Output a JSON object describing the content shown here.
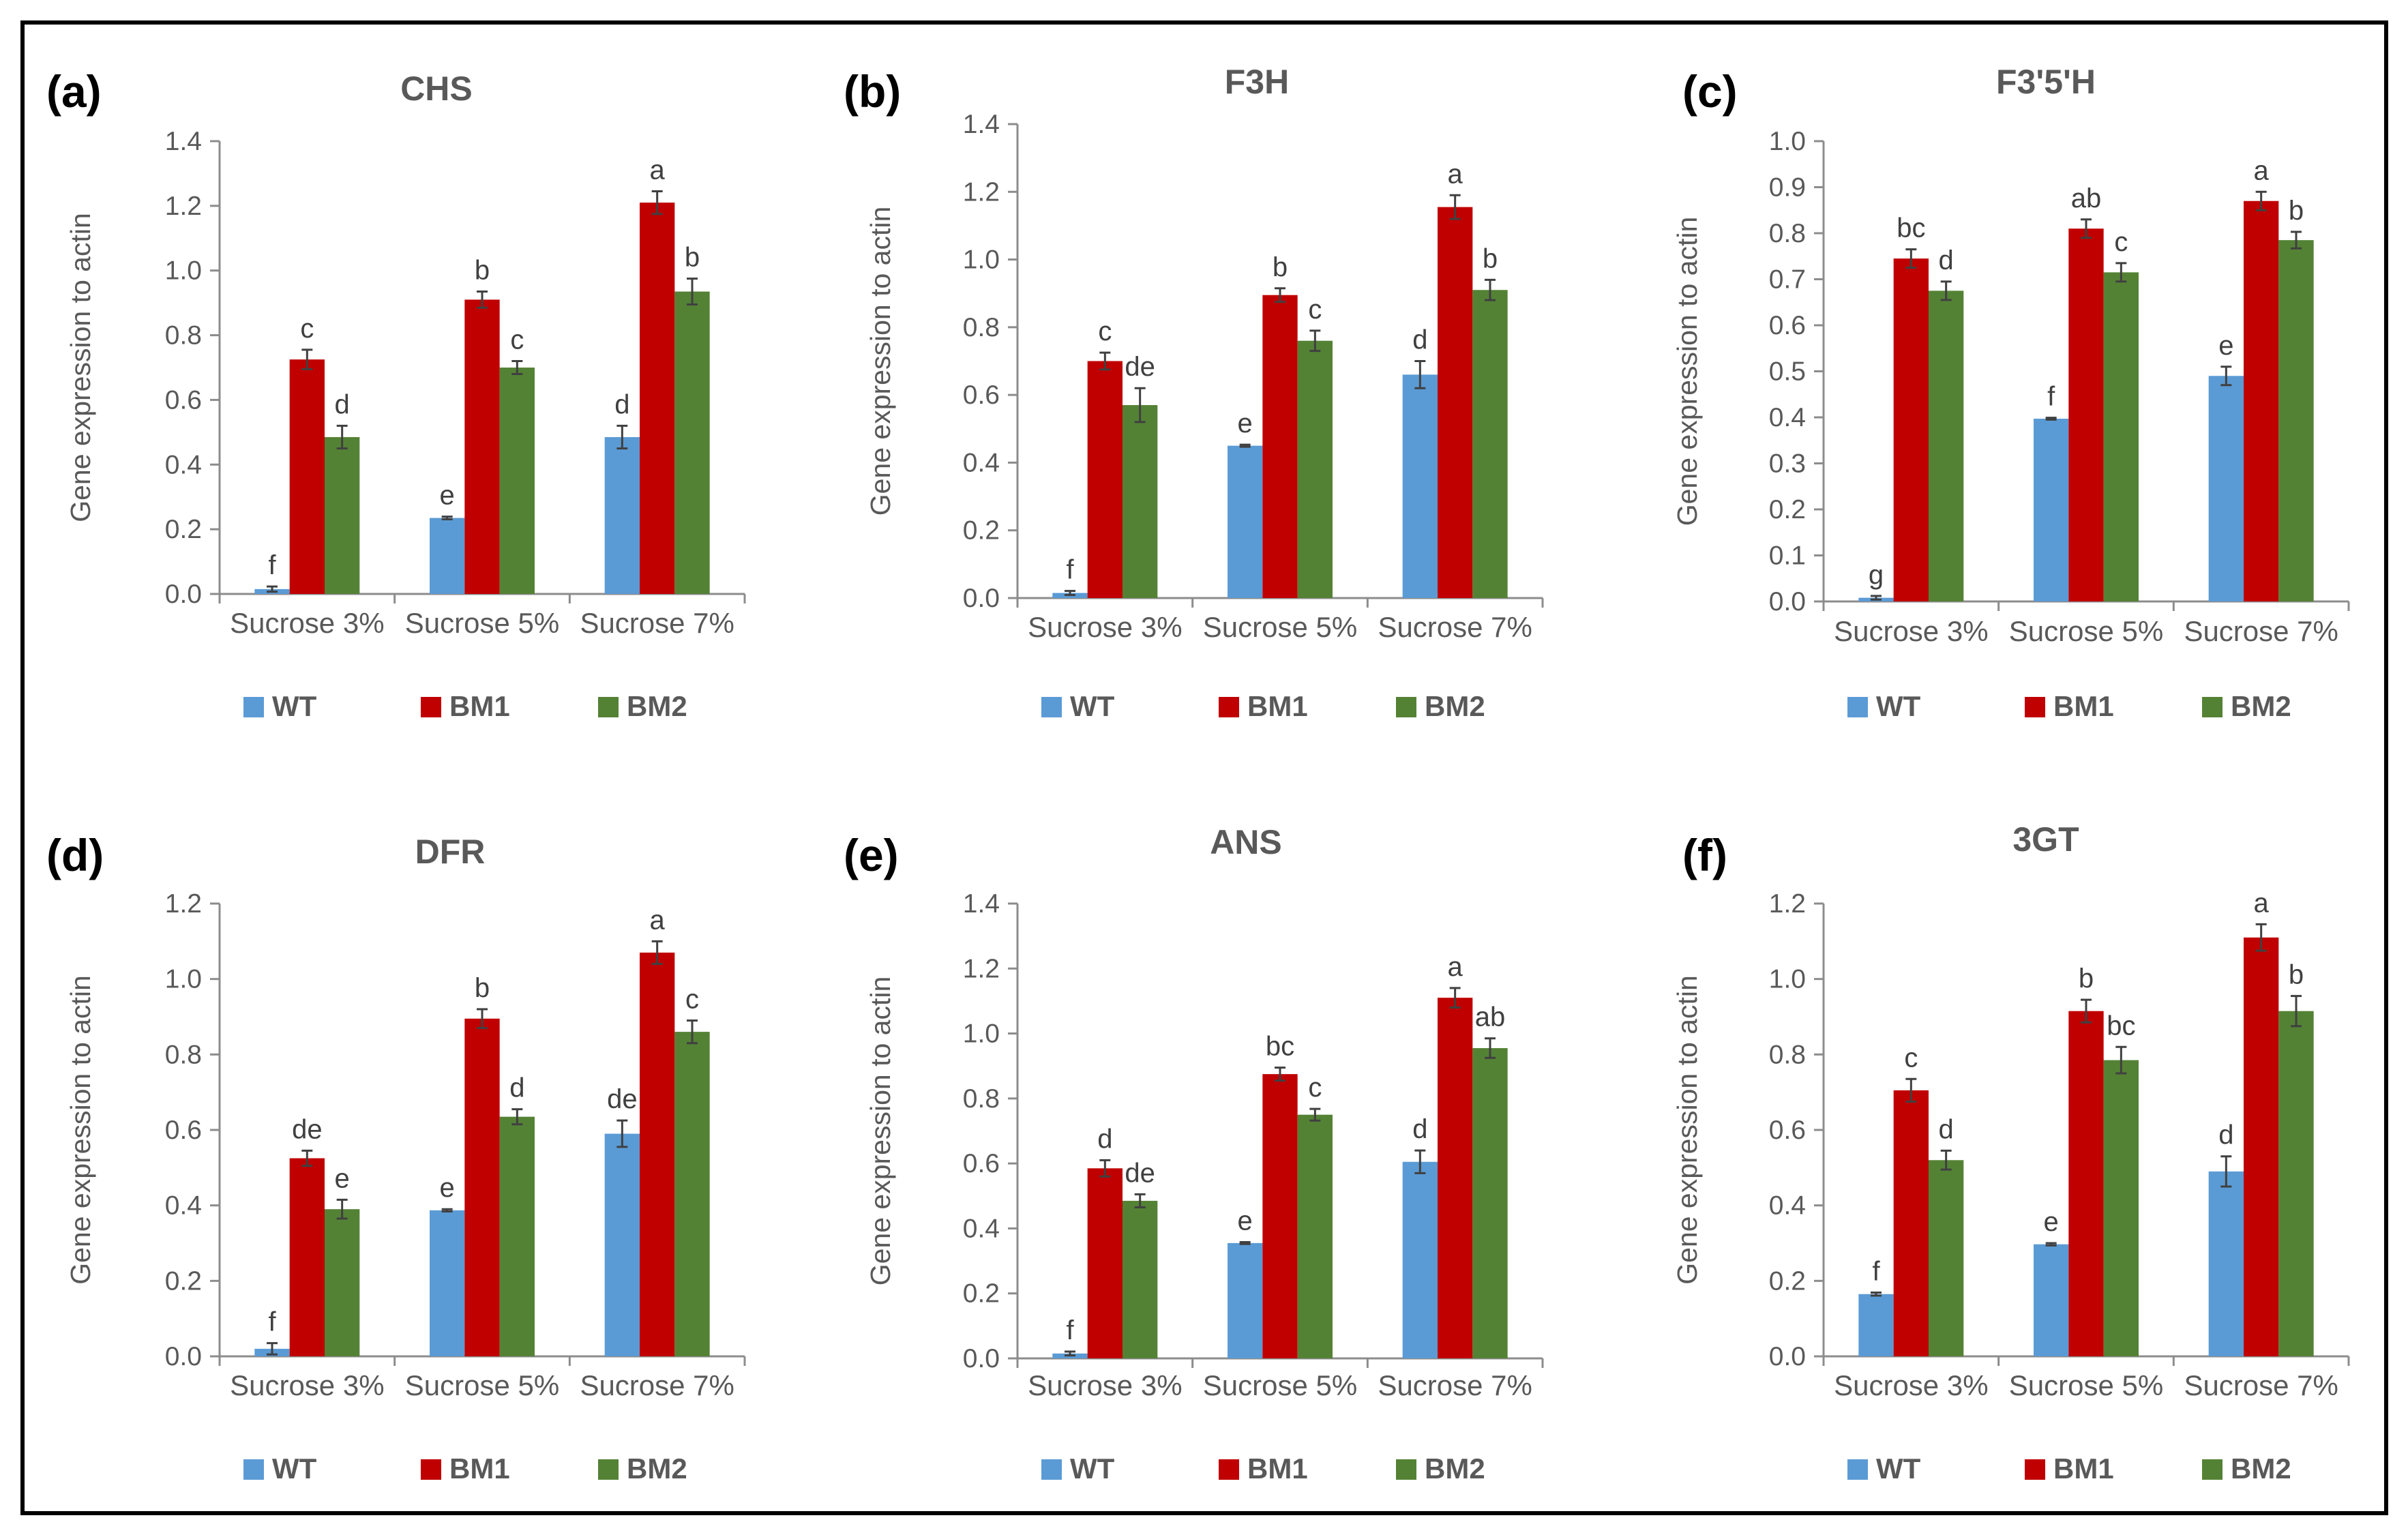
{
  "chart_data": [
    {
      "type": "bar",
      "panel": "(a)",
      "title": "CHS",
      "xlabel": "",
      "ylabel": "Gene expression to actin",
      "categories": [
        "Sucrose 3%",
        "Sucrose 5%",
        "Sucrose 7%"
      ],
      "ylim": [
        0,
        1.4
      ],
      "ytick_step": 0.2,
      "ytick_decimals": 1,
      "legend": "bottom",
      "series": [
        {
          "name": "WT",
          "color": "#5b9bd5",
          "values": [
            0.015,
            0.235,
            0.485
          ],
          "errors": [
            0.008,
            0.004,
            0.035
          ],
          "labels": [
            "f",
            "e",
            "d"
          ]
        },
        {
          "name": "BM1",
          "color": "#c00000",
          "values": [
            0.725,
            0.91,
            1.21
          ],
          "errors": [
            0.03,
            0.025,
            0.035
          ],
          "labels": [
            "c",
            "b",
            "a"
          ]
        },
        {
          "name": "BM2",
          "color": "#548235",
          "values": [
            0.485,
            0.7,
            0.935
          ],
          "errors": [
            0.035,
            0.02,
            0.04
          ],
          "labels": [
            "d",
            "c",
            "b"
          ]
        }
      ]
    },
    {
      "type": "bar",
      "panel": "(b)",
      "title": "F3H",
      "xlabel": "",
      "ylabel": "Gene expression to actin",
      "categories": [
        "Sucrose 3%",
        "Sucrose 5%",
        "Sucrose 7%"
      ],
      "ylim": [
        0,
        1.4
      ],
      "ytick_step": 0.2,
      "ytick_decimals": 1,
      "legend": "bottom",
      "series": [
        {
          "name": "WT",
          "color": "#5b9bd5",
          "values": [
            0.015,
            0.45,
            0.66
          ],
          "errors": [
            0.006,
            0.003,
            0.04
          ],
          "labels": [
            "f",
            "e",
            "d"
          ]
        },
        {
          "name": "BM1",
          "color": "#c00000",
          "values": [
            0.7,
            0.895,
            1.155
          ],
          "errors": [
            0.025,
            0.02,
            0.035
          ],
          "labels": [
            "c",
            "b",
            "a"
          ]
        },
        {
          "name": "BM2",
          "color": "#548235",
          "values": [
            0.57,
            0.76,
            0.91
          ],
          "errors": [
            0.05,
            0.03,
            0.03
          ],
          "labels": [
            "de",
            "c",
            "b"
          ]
        }
      ]
    },
    {
      "type": "bar",
      "panel": "(c)",
      "title": "F3'5'H",
      "xlabel": "",
      "ylabel": "Gene expression to actin",
      "categories": [
        "Sucrose 3%",
        "Sucrose 5%",
        "Sucrose 7%"
      ],
      "ylim": [
        0,
        1.0
      ],
      "ytick_step": 0.1,
      "ytick_decimals": 1,
      "legend": "bottom",
      "series": [
        {
          "name": "WT",
          "color": "#5b9bd5",
          "values": [
            0.008,
            0.397,
            0.49
          ],
          "errors": [
            0.004,
            0.002,
            0.02
          ],
          "labels": [
            "g",
            "f",
            "e"
          ]
        },
        {
          "name": "BM1",
          "color": "#c00000",
          "values": [
            0.745,
            0.81,
            0.87
          ],
          "errors": [
            0.02,
            0.02,
            0.02
          ],
          "labels": [
            "bc",
            "ab",
            "a"
          ]
        },
        {
          "name": "BM2",
          "color": "#548235",
          "values": [
            0.675,
            0.715,
            0.785
          ],
          "errors": [
            0.02,
            0.02,
            0.018
          ],
          "labels": [
            "d",
            "c",
            "b"
          ]
        }
      ]
    },
    {
      "type": "bar",
      "panel": "(d)",
      "title": "DFR",
      "xlabel": "",
      "ylabel": "Gene expression to actin",
      "categories": [
        "Sucrose 3%",
        "Sucrose 5%",
        "Sucrose 7%"
      ],
      "ylim": [
        0,
        1.2
      ],
      "ytick_step": 0.2,
      "ytick_decimals": 1,
      "legend": "bottom",
      "series": [
        {
          "name": "WT",
          "color": "#5b9bd5",
          "values": [
            0.02,
            0.387,
            0.59
          ],
          "errors": [
            0.015,
            0.003,
            0.035
          ],
          "labels": [
            "f",
            "e",
            "de"
          ]
        },
        {
          "name": "BM1",
          "color": "#c00000",
          "values": [
            0.525,
            0.895,
            1.07
          ],
          "errors": [
            0.02,
            0.025,
            0.03
          ],
          "labels": [
            "de",
            "b",
            "a"
          ]
        },
        {
          "name": "BM2",
          "color": "#548235",
          "values": [
            0.39,
            0.635,
            0.86
          ],
          "errors": [
            0.025,
            0.02,
            0.03
          ],
          "labels": [
            "e",
            "d",
            "c"
          ]
        }
      ]
    },
    {
      "type": "bar",
      "panel": "(e)",
      "title": "ANS",
      "xlabel": "",
      "ylabel": "Gene expression to actin",
      "categories": [
        "Sucrose 3%",
        "Sucrose 5%",
        "Sucrose 7%"
      ],
      "ylim": [
        0,
        1.4
      ],
      "ytick_step": 0.2,
      "ytick_decimals": 1,
      "legend": "bottom",
      "series": [
        {
          "name": "WT",
          "color": "#5b9bd5",
          "values": [
            0.015,
            0.355,
            0.605
          ],
          "errors": [
            0.006,
            0.003,
            0.035
          ],
          "labels": [
            "f",
            "e",
            "d"
          ]
        },
        {
          "name": "BM1",
          "color": "#c00000",
          "values": [
            0.585,
            0.875,
            1.11
          ],
          "errors": [
            0.025,
            0.02,
            0.03
          ],
          "labels": [
            "d",
            "bc",
            "a"
          ]
        },
        {
          "name": "BM2",
          "color": "#548235",
          "values": [
            0.485,
            0.75,
            0.955
          ],
          "errors": [
            0.02,
            0.018,
            0.03
          ],
          "labels": [
            "de",
            "c",
            "ab"
          ]
        }
      ]
    },
    {
      "type": "bar",
      "panel": "(f)",
      "title": "3GT",
      "xlabel": "",
      "ylabel": "Gene expression to actin",
      "categories": [
        "Sucrose 3%",
        "Sucrose 5%",
        "Sucrose 7%"
      ],
      "ylim": [
        0,
        1.2
      ],
      "ytick_step": 0.2,
      "ytick_decimals": 1,
      "legend": "bottom",
      "series": [
        {
          "name": "WT",
          "color": "#5b9bd5",
          "values": [
            0.165,
            0.297,
            0.49
          ],
          "errors": [
            0.004,
            0.003,
            0.04
          ],
          "labels": [
            "f",
            "e",
            "d"
          ]
        },
        {
          "name": "BM1",
          "color": "#c00000",
          "values": [
            0.705,
            0.915,
            1.11
          ],
          "errors": [
            0.03,
            0.03,
            0.035
          ],
          "labels": [
            "c",
            "b",
            "a"
          ]
        },
        {
          "name": "BM2",
          "color": "#548235",
          "values": [
            0.52,
            0.785,
            0.915
          ],
          "errors": [
            0.025,
            0.035,
            0.04
          ],
          "labels": [
            "d",
            "bc",
            "b"
          ]
        }
      ]
    }
  ]
}
